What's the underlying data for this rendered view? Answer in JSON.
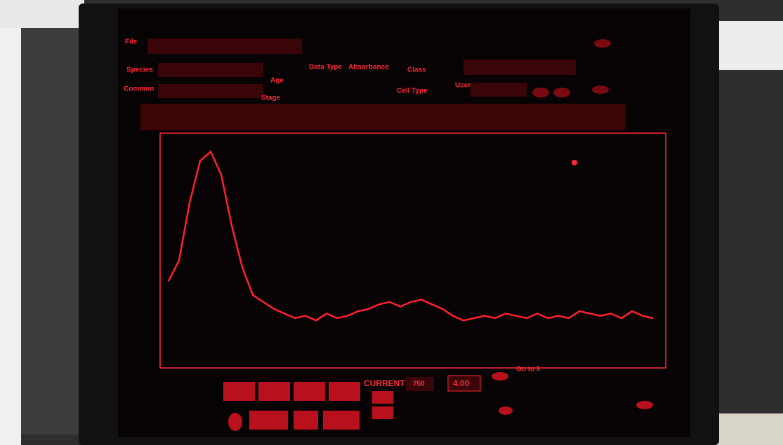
{
  "header": {
    "file": "File",
    "species": "Species",
    "common": "Common",
    "age": "Age",
    "data_type": "Data Type",
    "data_type_value": "Absorbance",
    "class": "Class",
    "stage": "Stage",
    "cell_type": "Cell Type",
    "user": "User"
  },
  "spectrum": {
    "values": [
      36,
      45,
      70,
      88,
      92,
      82,
      60,
      42,
      30,
      27,
      24,
      22,
      20,
      21,
      19,
      22,
      20,
      21,
      23,
      24,
      26,
      27,
      25,
      27,
      28,
      26,
      24,
      21,
      19,
      20,
      21,
      20,
      22,
      21,
      20,
      22,
      20,
      21,
      20,
      23,
      22,
      21,
      22,
      20,
      23,
      21,
      20
    ]
  },
  "footer": {
    "current": "CURRENT",
    "current_value": "750",
    "readout": "4.00",
    "goto": "Go to λ"
  }
}
